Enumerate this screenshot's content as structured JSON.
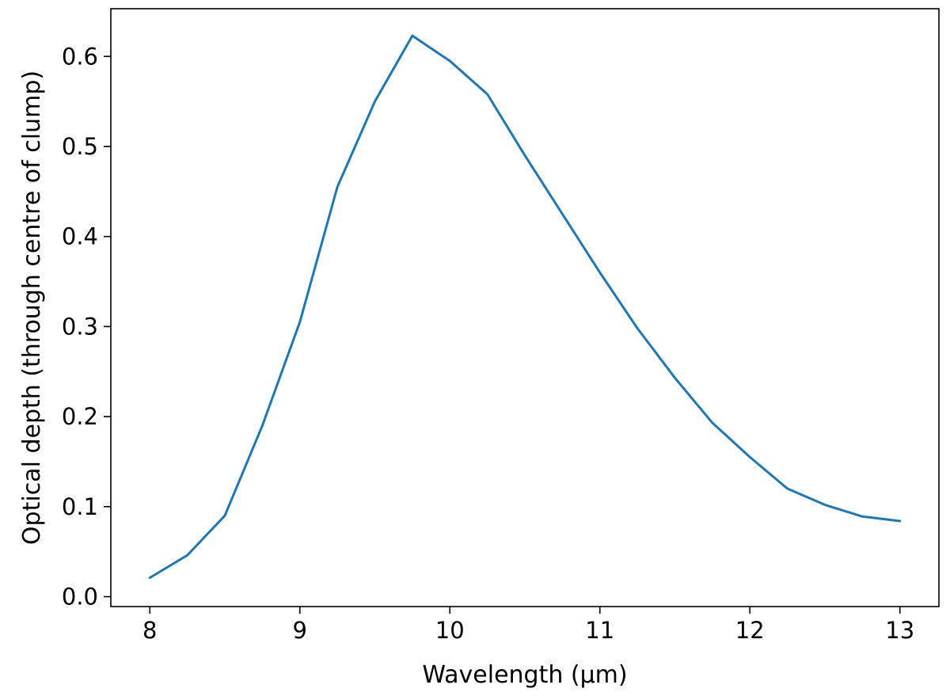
{
  "chart_data": {
    "type": "line",
    "title": "",
    "xlabel": "Wavelength (μm)",
    "ylabel": "Optical depth (through centre of clump)",
    "xlim": [
      7.74,
      13.26
    ],
    "ylim": [
      -0.011,
      0.653
    ],
    "x_ticks": [
      8,
      9,
      10,
      11,
      12,
      13
    ],
    "x_tick_labels": [
      "8",
      "9",
      "10",
      "11",
      "12",
      "13"
    ],
    "y_ticks": [
      0.0,
      0.1,
      0.2,
      0.3,
      0.4,
      0.5,
      0.6
    ],
    "y_tick_labels": [
      "0.0",
      "0.1",
      "0.2",
      "0.3",
      "0.4",
      "0.5",
      "0.6"
    ],
    "grid": false,
    "legend": "none",
    "series": [
      {
        "color": "#1f77b4",
        "x": [
          8.0,
          8.25,
          8.5,
          8.75,
          9.0,
          9.25,
          9.5,
          9.75,
          10.0,
          10.25,
          10.5,
          10.75,
          11.0,
          11.25,
          11.5,
          11.75,
          12.0,
          12.25,
          12.5,
          12.75,
          13.0
        ],
        "y": [
          0.021,
          0.046,
          0.09,
          0.19,
          0.305,
          0.455,
          0.55,
          0.623,
          0.595,
          0.558,
          0.49,
          0.425,
          0.36,
          0.298,
          0.243,
          0.193,
          0.155,
          0.12,
          0.102,
          0.089,
          0.084
        ]
      }
    ]
  }
}
